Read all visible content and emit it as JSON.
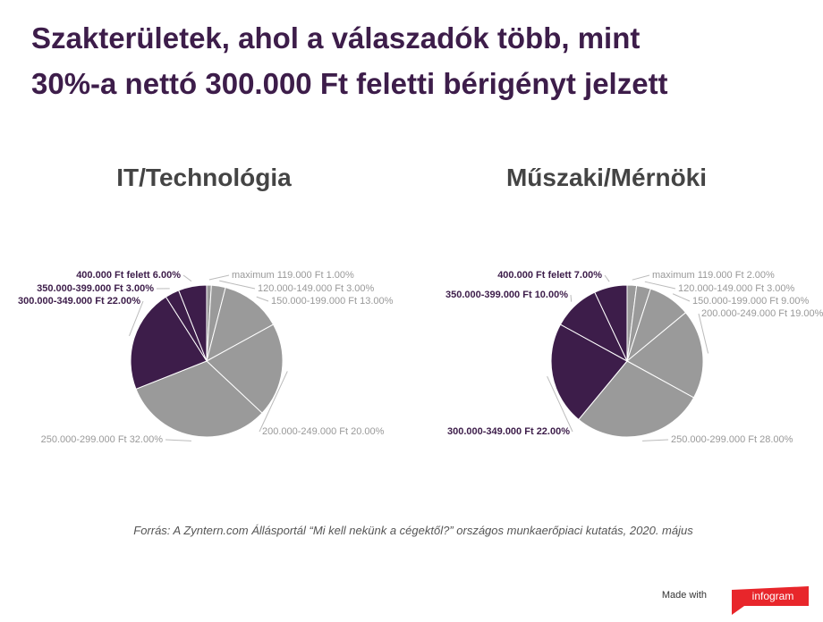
{
  "header": {
    "title": [
      "Szakterületek, ahol a válaszadók több, mint",
      "30%-a nettó 300.000 Ft feletti bérigényt jelzett"
    ]
  },
  "chart_data": [
    {
      "type": "pie",
      "title": "IT/Technológia",
      "categories": [
        "maximum 119.000 Ft",
        "120.000-149.000 Ft",
        "150.000-199.000 Ft",
        "200.000-249.000 Ft",
        "250.000-299.000 Ft",
        "300.000-349.000 Ft",
        "350.000-399.000 Ft",
        "400.000 Ft felett"
      ],
      "values": [
        1,
        3,
        13,
        20,
        32,
        22,
        3,
        6
      ],
      "value_labels": [
        "1.00%",
        "3.00%",
        "13.00%",
        "20.00%",
        "32.00%",
        "22.00%",
        "3.00%",
        "6.00%"
      ],
      "colors": [
        "#9a9a9a",
        "#9a9a9a",
        "#9a9a9a",
        "#9a9a9a",
        "#9a9a9a",
        "#3d1d4a",
        "#3d1d4a",
        "#3d1d4a"
      ]
    },
    {
      "type": "pie",
      "title": "Műszaki/Mérnöki",
      "categories": [
        "maximum 119.000 Ft",
        "120.000-149.000 Ft",
        "150.000-199.000 Ft",
        "200.000-249.000 Ft",
        "250.000-299.000 Ft",
        "300.000-349.000 Ft",
        "350.000-399.000 Ft",
        "400.000 Ft felett"
      ],
      "values": [
        2,
        3,
        9,
        19,
        28,
        22,
        10,
        7
      ],
      "value_labels": [
        "2.00%",
        "3.00%",
        "9.00%",
        "19.00%",
        "28.00%",
        "22.00%",
        "10.00%",
        "7.00%"
      ],
      "colors": [
        "#9a9a9a",
        "#9a9a9a",
        "#9a9a9a",
        "#9a9a9a",
        "#9a9a9a",
        "#3d1d4a",
        "#3d1d4a",
        "#3d1d4a"
      ]
    }
  ],
  "source": "Forrás: A Zyntern.com Állásportál “Mi kell nekünk a cégektől?” országos munkaerőpiaci kutatás, 2020. május",
  "footer": {
    "made_with": "Made with",
    "brand": "infogram"
  }
}
